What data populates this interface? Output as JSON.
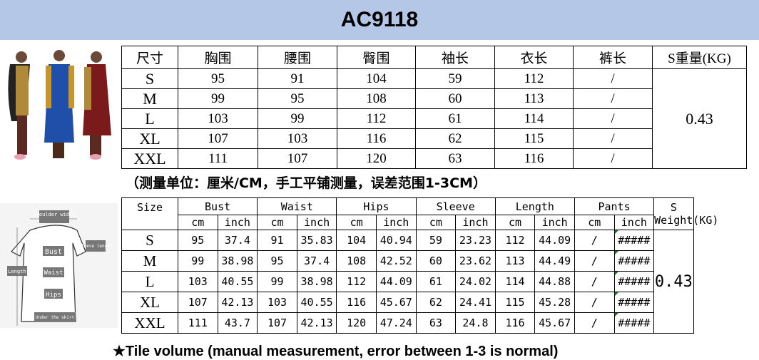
{
  "title": "AC9118",
  "cn_table": {
    "headers": [
      "尺寸",
      "胸围",
      "腰围",
      "臀围",
      "袖长",
      "衣长",
      "裤长",
      "S重量(KG)"
    ],
    "rows": [
      [
        "S",
        "95",
        "91",
        "104",
        "59",
        "112",
        "/"
      ],
      [
        "M",
        "99",
        "95",
        "108",
        "60",
        "113",
        "/"
      ],
      [
        "L",
        "103",
        "99",
        "112",
        "61",
        "114",
        "/"
      ],
      [
        "XL",
        "107",
        "103",
        "116",
        "62",
        "115",
        "/"
      ],
      [
        "XXL",
        "111",
        "107",
        "120",
        "63",
        "116",
        "/"
      ]
    ],
    "weight": "0.43"
  },
  "cn_note": "（测量单位：厘米/CM，手工平铺测量，误差范围1-3CM）",
  "en_table": {
    "headers": [
      "Size",
      "Bust",
      "Waist",
      "Hips",
      "Sleeve",
      "Length",
      "Pants",
      "S Weight(KG)"
    ],
    "unit_cm": "cm",
    "unit_inch": "inch",
    "rows": [
      [
        "S",
        "95",
        "37.4",
        "91",
        "35.83",
        "104",
        "40.94",
        "59",
        "23.23",
        "112",
        "44.09",
        "/",
        "#####"
      ],
      [
        "M",
        "99",
        "38.98",
        "95",
        "37.4",
        "108",
        "42.52",
        "60",
        "23.62",
        "113",
        "44.49",
        "/",
        "#####"
      ],
      [
        "L",
        "103",
        "40.55",
        "99",
        "38.98",
        "112",
        "44.09",
        "61",
        "24.02",
        "114",
        "44.88",
        "/",
        "#####"
      ],
      [
        "XL",
        "107",
        "42.13",
        "103",
        "40.55",
        "116",
        "45.67",
        "62",
        "24.41",
        "115",
        "45.28",
        "/",
        "#####"
      ],
      [
        "XXL",
        "111",
        "43.7",
        "107",
        "42.13",
        "120",
        "47.24",
        "63",
        "24.8",
        "116",
        "45.67",
        "/",
        "#####"
      ]
    ],
    "weight": "0.43"
  },
  "en_note": "★Tile volume (manual measurement, error between 1-3 is normal)",
  "diagram_labels": {
    "shoulder": "shoulder width",
    "sleeve": "sleeve length",
    "bust": "Bust",
    "waist": "Waist",
    "hips": "Hips",
    "length": "Length",
    "skirt": "Under the skirt"
  }
}
